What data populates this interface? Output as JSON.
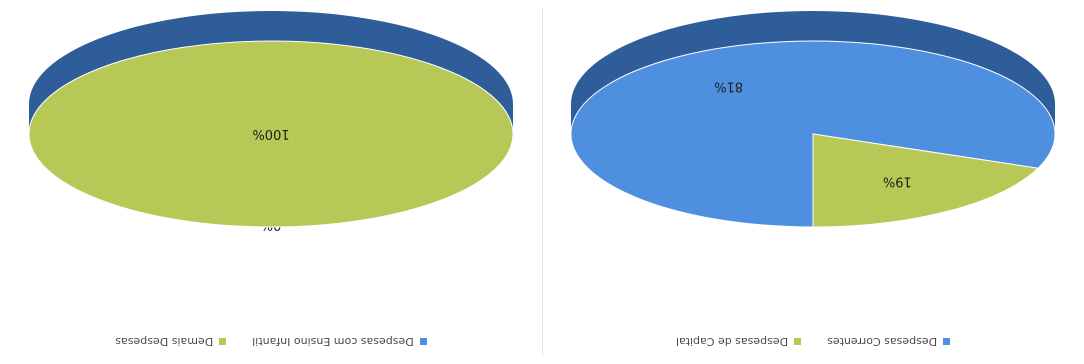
{
  "chart_data": [
    {
      "type": "pie",
      "title": "",
      "legend_position": "top",
      "colors": [
        "#4f8fe0",
        "#b7c857"
      ],
      "side_colors": [
        "#2e5d99",
        "#7f8f3a"
      ],
      "slices": [
        {
          "name": "Despesas com Ensino Infantil",
          "value": 0,
          "label": "0%"
        },
        {
          "name": "Demais Despesas",
          "value": 100,
          "label": "100%"
        }
      ]
    },
    {
      "type": "pie",
      "title": "",
      "legend_position": "top",
      "colors": [
        "#4f8fe0",
        "#b7c857"
      ],
      "side_colors": [
        "#2e5d99",
        "#7f8f3a"
      ],
      "slices": [
        {
          "name": "Despesas Correntes",
          "value": 81,
          "label": "81%"
        },
        {
          "name": "Despesas de Capital",
          "value": 19,
          "label": "19%"
        }
      ]
    }
  ]
}
